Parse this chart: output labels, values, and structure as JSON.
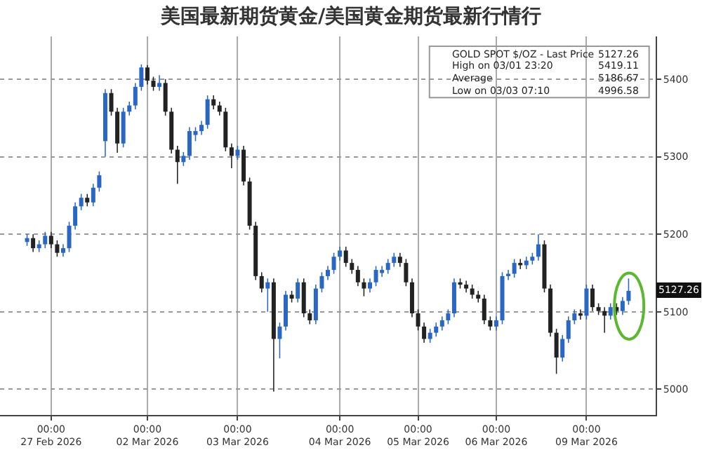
{
  "chart_data": {
    "type": "candlestick",
    "title": "美国最新期货黄金/美国黄金期货最新行情行",
    "colors": [
      "#2a66c4",
      "#222222",
      "#2a66c4",
      "#2a66c4",
      "#222222",
      "#222222",
      "#2a66c4",
      "#2a66c4",
      "#2a66c4",
      "#2a66c4",
      "#222222",
      "#2a66c4",
      "#2a66c4",
      "#2a66c4",
      "#222222",
      "#222222",
      "#2a66c4",
      "#2a66c4",
      "#2a66c4",
      "#2a66c4",
      "#222222",
      "#222222",
      "#2a66c4",
      "#222222",
      "#222222",
      "#222222",
      "#2a66c4",
      "#2a66c4",
      "#2a66c4",
      "#2a66c4",
      "#2a66c4",
      "#222222",
      "#222222",
      "#222222",
      "#222222",
      "#2a66c4",
      "#222222",
      "#222222",
      "#222222",
      "#222222",
      "#2a66c4",
      "#222222",
      "#2a66c4",
      "#2a66c4",
      "#222222",
      "#2a66c4",
      "#222222",
      "#222222",
      "#2a66c4",
      "#2a66c4",
      "#2a66c4",
      "#2a66c4",
      "#2a66c4",
      "#222222",
      "#222222",
      "#222222",
      "#222222",
      "#2a66c4",
      "#2a66c4",
      "#2a66c4",
      "#2a66c4",
      "#2a66c4",
      "#222222",
      "#222222",
      "#222222",
      "#222222",
      "#222222",
      "#2a66c4",
      "#2a66c4",
      "#2a66c4",
      "#2a66c4",
      "#2a66c4",
      "#222222",
      "#222222",
      "#222222",
      "#222222",
      "#222222",
      "#222222",
      "#2a66c4",
      "#2a66c4",
      "#2a66c4",
      "#2a66c4",
      "#222222",
      "#2a66c4",
      "#2a66c4",
      "#2a66c4",
      "#222222",
      "#222222",
      "#222222",
      "#2a66c4",
      "#2a66c4",
      "#2a66c4",
      "#222222",
      "#2a66c4",
      "#222222",
      "#222222",
      "#222222",
      "#2a66c4",
      "#222222",
      "#2a66c4",
      "#2a66c4"
    ],
    "categories": [
      null,
      null,
      null,
      null,
      "00:00\n27 Feb 2026",
      null,
      null,
      null,
      null,
      null,
      null,
      null,
      null,
      null,
      null,
      null,
      null,
      null,
      null,
      null,
      "00:00\n02 Mar 2026",
      null,
      null,
      null,
      null,
      null,
      null,
      null,
      null,
      null,
      null,
      null,
      null,
      null,
      null,
      "00:00\n03 Mar 2026",
      null,
      null,
      null,
      null,
      null,
      null,
      null,
      null,
      null,
      null,
      null,
      null,
      null,
      null,
      null,
      null,
      "00:00\n04 Mar 2026",
      null,
      null,
      null,
      null,
      null,
      null,
      null,
      null,
      null,
      null,
      null,
      null,
      "00:00\n05 Mar 2026",
      null,
      null,
      null,
      null,
      null,
      null,
      null,
      null,
      null,
      null,
      null,
      null,
      "00:00\n06 Mar 2026",
      null,
      null,
      null,
      null,
      null,
      null,
      null,
      null,
      null,
      null,
      null,
      null,
      null,
      null,
      "00:00\n09 Mar 2026",
      null,
      null,
      null,
      null,
      null,
      null,
      null
    ],
    "ohlc": [
      [
        5190,
        5200,
        5185,
        5195
      ],
      [
        5195,
        5200,
        5177,
        5182
      ],
      [
        5182,
        5192,
        5177,
        5187
      ],
      [
        5187,
        5203,
        5182,
        5198
      ],
      [
        5198,
        5203,
        5182,
        5187
      ],
      [
        5187,
        5192,
        5171,
        5176
      ],
      [
        5176,
        5187,
        5171,
        5182
      ],
      [
        5182,
        5216,
        5177,
        5211
      ],
      [
        5211,
        5241,
        5206,
        5236
      ],
      [
        5236,
        5252,
        5231,
        5247
      ],
      [
        5247,
        5252,
        5236,
        5241
      ],
      [
        5241,
        5265,
        5236,
        5260
      ],
      [
        5260,
        5281,
        5255,
        5276
      ],
      [
        5320,
        5387,
        5300,
        5382
      ],
      [
        5382,
        5387,
        5353,
        5358
      ],
      [
        5358,
        5363,
        5305,
        5317
      ],
      [
        5317,
        5363,
        5312,
        5358
      ],
      [
        5358,
        5371,
        5353,
        5366
      ],
      [
        5366,
        5395,
        5361,
        5390
      ],
      [
        5390,
        5419,
        5385,
        5415
      ],
      [
        5415,
        5418,
        5393,
        5398
      ],
      [
        5398,
        5403,
        5385,
        5390
      ],
      [
        5390,
        5405,
        5385,
        5395
      ],
      [
        5395,
        5400,
        5353,
        5358
      ],
      [
        5358,
        5363,
        5304,
        5309
      ],
      [
        5309,
        5314,
        5265,
        5293
      ],
      [
        5293,
        5306,
        5288,
        5301
      ],
      [
        5301,
        5338,
        5296,
        5333
      ],
      [
        5328,
        5338,
        5320,
        5333
      ],
      [
        5333,
        5346,
        5328,
        5341
      ],
      [
        5341,
        5379,
        5336,
        5374
      ],
      [
        5374,
        5379,
        5361,
        5366
      ],
      [
        5366,
        5371,
        5353,
        5358
      ],
      [
        5358,
        5363,
        5307,
        5312
      ],
      [
        5312,
        5317,
        5285,
        5301
      ],
      [
        5301,
        5314,
        5296,
        5309
      ],
      [
        5309,
        5314,
        5263,
        5268
      ],
      [
        5268,
        5273,
        5206,
        5211
      ],
      [
        5211,
        5216,
        5141,
        5146
      ],
      [
        5146,
        5151,
        5125,
        5130
      ],
      [
        5130,
        5143,
        5100,
        5138
      ],
      [
        5138,
        5143,
        4997,
        5065
      ],
      [
        5065,
        5086,
        5040,
        5081
      ],
      [
        5081,
        5127,
        5076,
        5122
      ],
      [
        5122,
        5127,
        5112,
        5117
      ],
      [
        5117,
        5143,
        5112,
        5138
      ],
      [
        5138,
        5143,
        5093,
        5098
      ],
      [
        5098,
        5103,
        5084,
        5089
      ],
      [
        5089,
        5135,
        5084,
        5130
      ],
      [
        5130,
        5151,
        5125,
        5146
      ],
      [
        5146,
        5159,
        5141,
        5154
      ],
      [
        5154,
        5176,
        5149,
        5171
      ],
      [
        5171,
        5184,
        5166,
        5179
      ],
      [
        5179,
        5184,
        5158,
        5163
      ],
      [
        5163,
        5168,
        5149,
        5154
      ],
      [
        5154,
        5159,
        5133,
        5138
      ],
      [
        5138,
        5143,
        5120,
        5130
      ],
      [
        5130,
        5143,
        5125,
        5138
      ],
      [
        5138,
        5159,
        5133,
        5154
      ],
      [
        5150,
        5159,
        5145,
        5154
      ],
      [
        5154,
        5168,
        5149,
        5163
      ],
      [
        5163,
        5176,
        5158,
        5171
      ],
      [
        5171,
        5176,
        5158,
        5163
      ],
      [
        5163,
        5168,
        5133,
        5138
      ],
      [
        5138,
        5143,
        5093,
        5098
      ],
      [
        5098,
        5103,
        5076,
        5081
      ],
      [
        5081,
        5086,
        5060,
        5065
      ],
      [
        5065,
        5078,
        5060,
        5073
      ],
      [
        5073,
        5086,
        5068,
        5081
      ],
      [
        5081,
        5094,
        5076,
        5089
      ],
      [
        5089,
        5103,
        5084,
        5098
      ],
      [
        5098,
        5143,
        5093,
        5138
      ],
      [
        5138,
        5143,
        5130,
        5135
      ],
      [
        5135,
        5140,
        5125,
        5130
      ],
      [
        5130,
        5135,
        5117,
        5122
      ],
      [
        5122,
        5127,
        5112,
        5117
      ],
      [
        5117,
        5122,
        5084,
        5089
      ],
      [
        5089,
        5094,
        5076,
        5081
      ],
      [
        5081,
        5094,
        5076,
        5089
      ],
      [
        5089,
        5151,
        5084,
        5146
      ],
      [
        5146,
        5154,
        5141,
        5149
      ],
      [
        5149,
        5168,
        5144,
        5163
      ],
      [
        5163,
        5168,
        5155,
        5160
      ],
      [
        5160,
        5171,
        5155,
        5166
      ],
      [
        5166,
        5176,
        5161,
        5171
      ],
      [
        5171,
        5200,
        5166,
        5187
      ],
      [
        5187,
        5192,
        5125,
        5130
      ],
      [
        5130,
        5135,
        5068,
        5073
      ],
      [
        5073,
        5078,
        5020,
        5041
      ],
      [
        5041,
        5070,
        5036,
        5065
      ],
      [
        5065,
        5094,
        5060,
        5089
      ],
      [
        5089,
        5103,
        5084,
        5098
      ],
      [
        5098,
        5103,
        5090,
        5095
      ],
      [
        5095,
        5135,
        5090,
        5130
      ],
      [
        5130,
        5135,
        5101,
        5106
      ],
      [
        5106,
        5111,
        5096,
        5101
      ],
      [
        5101,
        5106,
        5073,
        5095
      ],
      [
        5095,
        5111,
        5090,
        5106
      ],
      [
        5106,
        5111,
        5096,
        5101
      ],
      [
        5101,
        5119,
        5096,
        5114
      ],
      [
        5114,
        5143,
        5109,
        5127
      ]
    ],
    "ylim": [
      4967,
      5455
    ],
    "yticks": [
      5000,
      5100,
      5200,
      5300,
      5400
    ],
    "grid": true,
    "annotations": [
      "GOLD SPOT $/OZ - Last Price",
      "5127.26",
      "High on 03/01 23:20",
      "5419.11",
      "Average",
      "5186.67",
      "Low on 03/03 07:10",
      "4996.58",
      "5127.26"
    ]
  }
}
